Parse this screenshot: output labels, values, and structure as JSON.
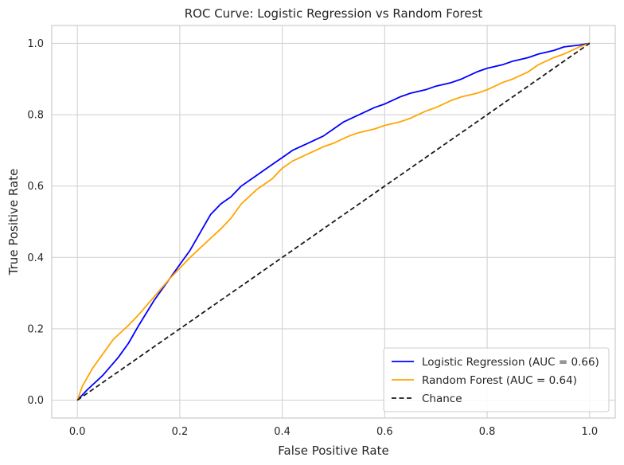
{
  "chart_data": {
    "type": "line",
    "title": "ROC Curve: Logistic Regression vs Random Forest",
    "xlabel": "False Positive Rate",
    "ylabel": "True Positive Rate",
    "xlim": [
      -0.05,
      1.05
    ],
    "ylim": [
      -0.05,
      1.05
    ],
    "xticks": [
      0.0,
      0.2,
      0.4,
      0.6,
      0.8,
      1.0
    ],
    "yticks": [
      0.0,
      0.2,
      0.4,
      0.6,
      0.8,
      1.0
    ],
    "xtick_labels": [
      "0.0",
      "0.2",
      "0.4",
      "0.6",
      "0.8",
      "1.0"
    ],
    "ytick_labels": [
      "0.0",
      "0.2",
      "0.4",
      "0.6",
      "0.8",
      "1.0"
    ],
    "grid": true,
    "legend_position": "lower-right",
    "series": [
      {
        "name": "Logistic Regression (AUC = 0.66)",
        "color": "#0000ff",
        "style": "solid",
        "x": [
          0.0,
          0.02,
          0.05,
          0.08,
          0.1,
          0.12,
          0.15,
          0.18,
          0.2,
          0.22,
          0.24,
          0.26,
          0.28,
          0.3,
          0.32,
          0.34,
          0.36,
          0.38,
          0.4,
          0.42,
          0.45,
          0.48,
          0.5,
          0.52,
          0.55,
          0.58,
          0.6,
          0.63,
          0.65,
          0.68,
          0.7,
          0.73,
          0.75,
          0.78,
          0.8,
          0.83,
          0.85,
          0.88,
          0.9,
          0.93,
          0.95,
          0.98,
          1.0
        ],
        "y": [
          0.0,
          0.03,
          0.07,
          0.12,
          0.16,
          0.21,
          0.28,
          0.34,
          0.38,
          0.42,
          0.47,
          0.52,
          0.55,
          0.57,
          0.6,
          0.62,
          0.64,
          0.66,
          0.68,
          0.7,
          0.72,
          0.74,
          0.76,
          0.78,
          0.8,
          0.82,
          0.83,
          0.85,
          0.86,
          0.87,
          0.88,
          0.89,
          0.9,
          0.92,
          0.93,
          0.94,
          0.95,
          0.96,
          0.97,
          0.98,
          0.99,
          0.995,
          1.0
        ]
      },
      {
        "name": "Random Forest (AUC = 0.64)",
        "color": "#ffa500",
        "style": "solid",
        "x": [
          0.0,
          0.01,
          0.03,
          0.05,
          0.07,
          0.1,
          0.12,
          0.15,
          0.18,
          0.2,
          0.22,
          0.25,
          0.28,
          0.3,
          0.32,
          0.35,
          0.38,
          0.4,
          0.42,
          0.45,
          0.48,
          0.5,
          0.53,
          0.55,
          0.58,
          0.6,
          0.63,
          0.65,
          0.68,
          0.7,
          0.73,
          0.75,
          0.78,
          0.8,
          0.83,
          0.85,
          0.88,
          0.9,
          0.93,
          0.95,
          0.98,
          1.0
        ],
        "y": [
          0.0,
          0.04,
          0.09,
          0.13,
          0.17,
          0.21,
          0.24,
          0.29,
          0.34,
          0.37,
          0.4,
          0.44,
          0.48,
          0.51,
          0.55,
          0.59,
          0.62,
          0.65,
          0.67,
          0.69,
          0.71,
          0.72,
          0.74,
          0.75,
          0.76,
          0.77,
          0.78,
          0.79,
          0.81,
          0.82,
          0.84,
          0.85,
          0.86,
          0.87,
          0.89,
          0.9,
          0.92,
          0.94,
          0.96,
          0.97,
          0.99,
          1.0
        ]
      },
      {
        "name": "Chance",
        "color": "#1a1a1a",
        "style": "dashed",
        "x": [
          0.0,
          1.0
        ],
        "y": [
          0.0,
          1.0
        ]
      }
    ]
  }
}
